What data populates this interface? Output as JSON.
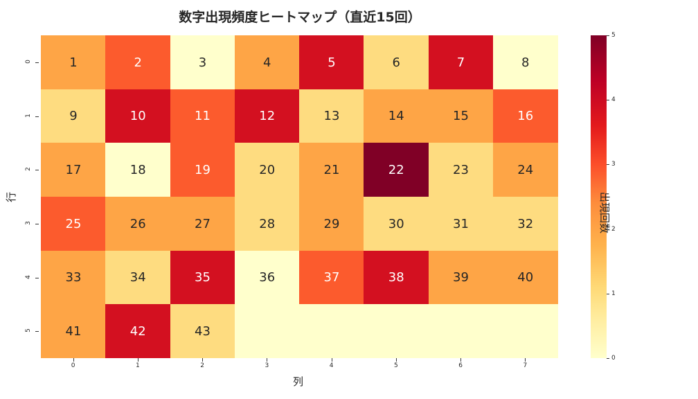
{
  "chart_data": {
    "type": "heatmap",
    "title": "数字出現頻度ヒートマップ（直近15回）",
    "xlabel": "列",
    "ylabel": "行",
    "colorbar_label": "出現回数",
    "colormap": "YlOrRd",
    "vmin": 0,
    "vmax": 5,
    "x_ticks": [
      "0",
      "1",
      "2",
      "3",
      "4",
      "5",
      "6",
      "7"
    ],
    "y_ticks": [
      "0",
      "1",
      "2",
      "3",
      "4",
      "5"
    ],
    "colorbar_ticks": [
      "0",
      "1",
      "2",
      "3",
      "4",
      "5"
    ],
    "annotations": [
      [
        "1",
        "2",
        "3",
        "4",
        "5",
        "6",
        "7",
        "8"
      ],
      [
        "9",
        "10",
        "11",
        "12",
        "13",
        "14",
        "15",
        "16"
      ],
      [
        "17",
        "18",
        "19",
        "20",
        "21",
        "22",
        "23",
        "24"
      ],
      [
        "25",
        "26",
        "27",
        "28",
        "29",
        "30",
        "31",
        "32"
      ],
      [
        "33",
        "34",
        "35",
        "36",
        "37",
        "38",
        "39",
        "40"
      ],
      [
        "41",
        "42",
        "43",
        "",
        "",
        "",
        "",
        ""
      ]
    ],
    "values": [
      [
        2,
        3,
        0,
        2,
        4,
        1,
        4,
        0
      ],
      [
        1,
        4,
        3,
        4,
        1,
        2,
        2,
        3
      ],
      [
        2,
        0,
        3,
        1,
        2,
        5,
        1,
        2
      ],
      [
        3,
        2,
        2,
        1,
        2,
        1,
        1,
        1
      ],
      [
        2,
        1,
        4,
        0,
        3,
        4,
        2,
        2
      ],
      [
        2,
        4,
        1,
        0,
        0,
        0,
        0,
        0
      ]
    ],
    "grid": false,
    "legend_position": "right colorbar"
  },
  "colors": {
    "0": "#ffffcc",
    "1": "#fedc80",
    "2": "#fea546",
    "3": "#fc5b2d",
    "4": "#d31020",
    "5": "#800026"
  }
}
